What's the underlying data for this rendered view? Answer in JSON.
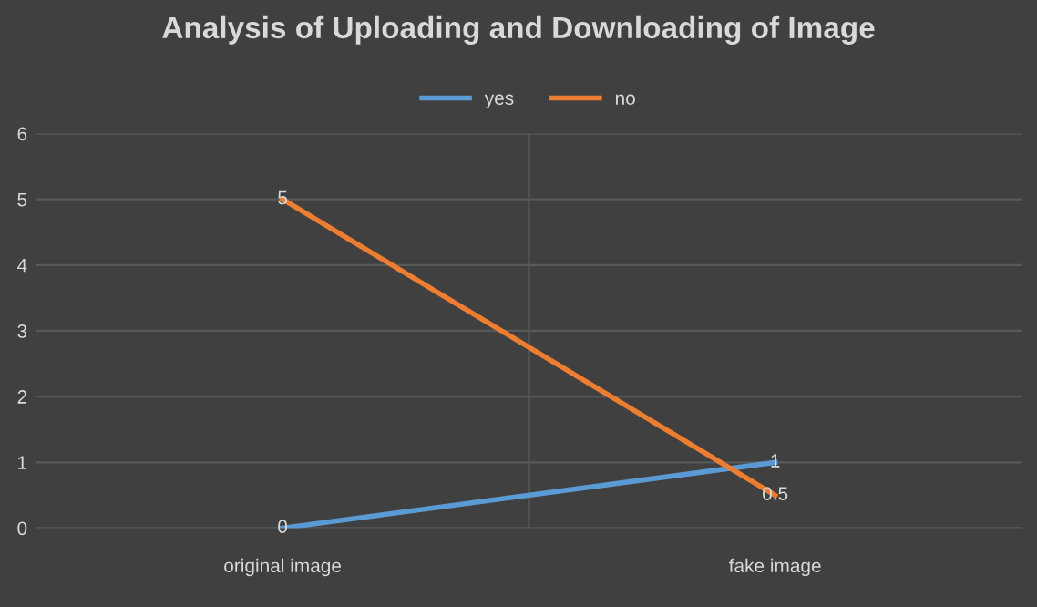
{
  "chart_data": {
    "type": "line",
    "title": "Analysis of Uploading and Downloading of Image",
    "categories": [
      "original image",
      "fake image"
    ],
    "series": [
      {
        "name": "yes",
        "color": "#5b9bd5",
        "values": [
          0,
          1
        ]
      },
      {
        "name": "no",
        "color": "#ed7d31",
        "values": [
          5,
          0.5
        ]
      }
    ],
    "ylim": [
      0,
      6
    ],
    "yticks": [
      0,
      1,
      2,
      3,
      4,
      5,
      6
    ],
    "grid": true,
    "legend": "top",
    "data_labels": true,
    "marker": "none",
    "line_style": "solid"
  }
}
